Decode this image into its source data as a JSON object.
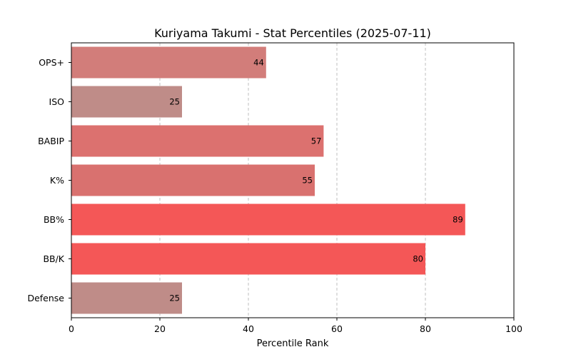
{
  "chart_data": {
    "type": "bar",
    "orientation": "horizontal",
    "title": "Kuriyama Takumi - Stat Percentiles (2025-07-11)",
    "xlabel": "Percentile Rank",
    "ylabel": "",
    "xlim": [
      0,
      100
    ],
    "xticks": [
      0,
      20,
      40,
      60,
      80,
      100
    ],
    "grid": "x-dashed",
    "categories": [
      "OPS+",
      "ISO",
      "BABIP",
      "K%",
      "BB%",
      "BB/K",
      "Defense"
    ],
    "values": [
      44,
      25,
      57,
      55,
      89,
      80,
      25
    ],
    "colors": [
      "#d27d7a",
      "#bf8c88",
      "#dc716f",
      "#d9716f",
      "#f45757",
      "#f45757",
      "#bf8c88"
    ]
  }
}
